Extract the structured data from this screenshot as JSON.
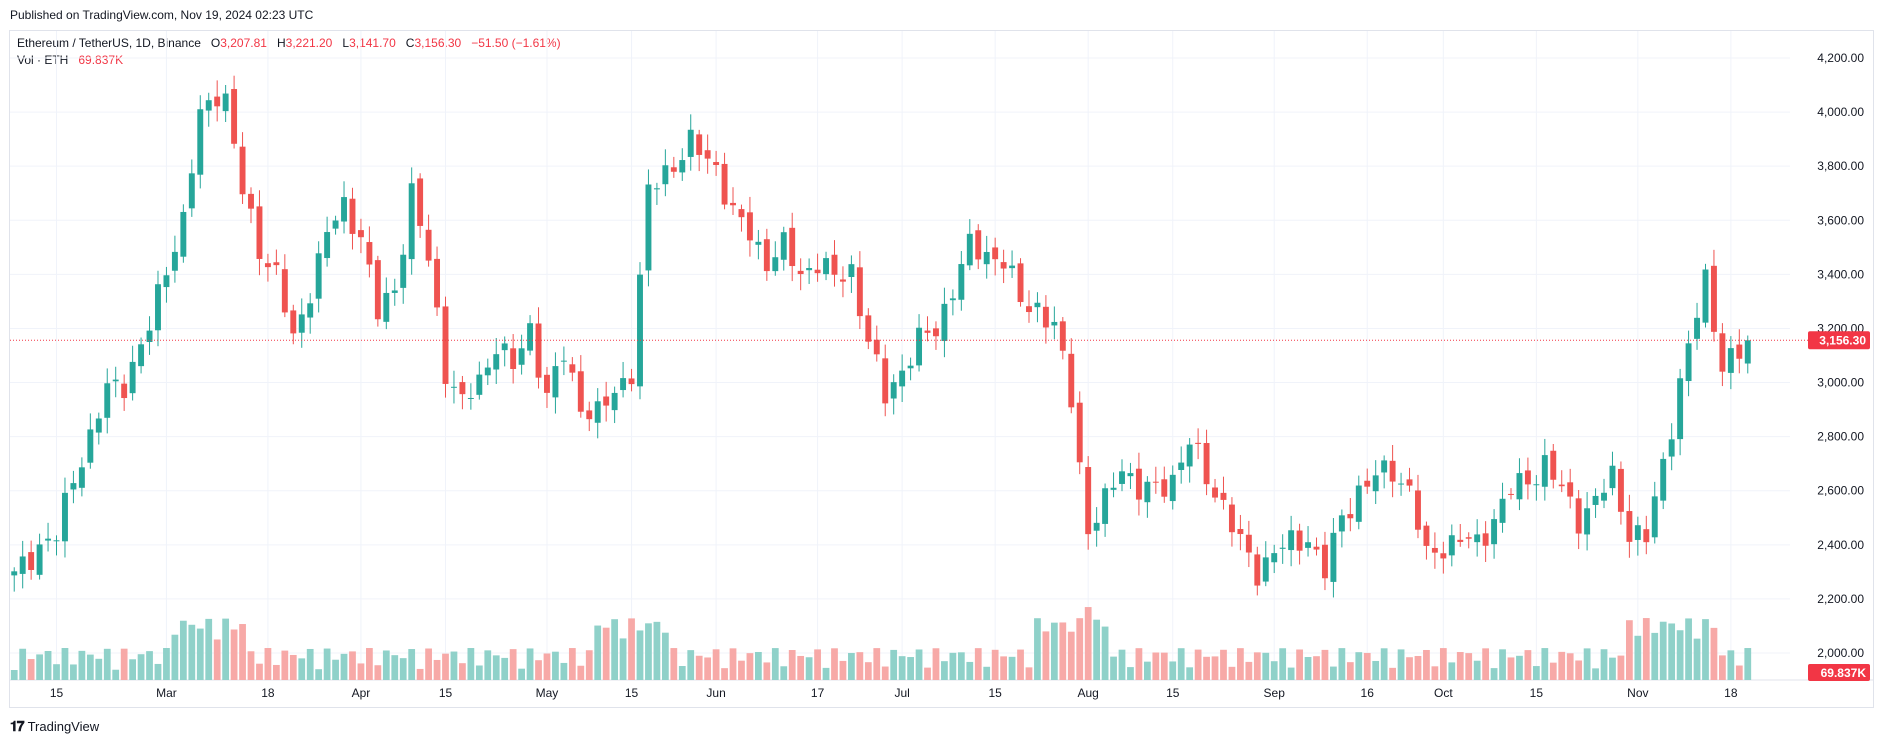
{
  "published": "Published on TradingView.com, Nov 19, 2024 02:23 UTC",
  "legend": {
    "symbol": "Ethereum / TetherUS, 1D, Binance",
    "o_label": "O",
    "o_value": "3,207.81",
    "h_label": "H",
    "h_value": "3,221.20",
    "l_label": "L",
    "l_value": "3,141.70",
    "c_label": "C",
    "c_value": "3,156.30",
    "change": "−51.50 (−1.61%)",
    "vol_label": "Vol · ETH",
    "vol_value": "69.837K"
  },
  "footer": {
    "brand": "TradingView",
    "logo": "tradingview-logo-icon"
  },
  "colors": {
    "up": "#26a69a",
    "down": "#ef5350",
    "up_volume": "#8fd1c9",
    "down_volume": "#f7a9a7",
    "last_price": "#f23645"
  },
  "chart_data": {
    "type": "candlestick",
    "title": "Ethereum / TetherUS, 1D, Binance",
    "ylim": [
      1900,
      4250
    ],
    "y_ticks": [
      "4,200.00",
      "4,000.00",
      "3,800.00",
      "3,600.00",
      "3,400.00",
      "3,200.00",
      "3,000.00",
      "2,800.00",
      "2,600.00",
      "2,400.00",
      "2,200.00",
      "2,000.00"
    ],
    "y_tick_values": [
      4200,
      4000,
      3800,
      3600,
      3400,
      3200,
      3000,
      2800,
      2600,
      2400,
      2200,
      2000
    ],
    "x_ticks": [
      "15",
      "Mar",
      "18",
      "Apr",
      "15",
      "May",
      "15",
      "Jun",
      "17",
      "Jul",
      "15",
      "Aug",
      "15",
      "Sep",
      "16",
      "Oct",
      "15",
      "Nov",
      "18"
    ],
    "x_tick_bars": [
      5,
      18,
      30,
      41,
      51,
      63,
      73,
      83,
      95,
      105,
      116,
      127,
      137,
      149,
      160,
      169,
      180,
      192,
      203
    ],
    "last_price": 3156.3,
    "last_price_label": "3,156.30",
    "last_volume_label": "69.837K",
    "waypoints": [
      [
        0,
        2280
      ],
      [
        3,
        2400
      ],
      [
        5,
        2430
      ],
      [
        7,
        2650
      ],
      [
        9,
        2800
      ],
      [
        11,
        2970
      ],
      [
        13,
        3000
      ],
      [
        16,
        3200
      ],
      [
        18,
        3430
      ],
      [
        20,
        3600
      ],
      [
        22,
        3980
      ],
      [
        24,
        4080
      ],
      [
        25,
        4050
      ],
      [
        27,
        3700
      ],
      [
        29,
        3500
      ],
      [
        31,
        3400
      ],
      [
        33,
        3150
      ],
      [
        35,
        3350
      ],
      [
        37,
        3550
      ],
      [
        39,
        3650
      ],
      [
        41,
        3550
      ],
      [
        43,
        3250
      ],
      [
        45,
        3350
      ],
      [
        47,
        3700
      ],
      [
        49,
        3450
      ],
      [
        51,
        3050
      ],
      [
        53,
        2920
      ],
      [
        55,
        3000
      ],
      [
        57,
        3150
      ],
      [
        59,
        3050
      ],
      [
        61,
        3200
      ],
      [
        63,
        2950
      ],
      [
        65,
        3100
      ],
      [
        67,
        2920
      ],
      [
        69,
        2880
      ],
      [
        71,
        2960
      ],
      [
        73,
        3050
      ],
      [
        75,
        3700
      ],
      [
        77,
        3780
      ],
      [
        80,
        3880
      ],
      [
        83,
        3800
      ],
      [
        85,
        3620
      ],
      [
        87,
        3550
      ],
      [
        89,
        3450
      ],
      [
        91,
        3500
      ],
      [
        93,
        3400
      ],
      [
        95,
        3450
      ],
      [
        97,
        3380
      ],
      [
        99,
        3420
      ],
      [
        101,
        3150
      ],
      [
        103,
        2950
      ],
      [
        105,
        3050
      ],
      [
        107,
        3150
      ],
      [
        109,
        3200
      ],
      [
        111,
        3350
      ],
      [
        113,
        3500
      ],
      [
        115,
        3480
      ],
      [
        117,
        3450
      ],
      [
        119,
        3300
      ],
      [
        121,
        3280
      ],
      [
        123,
        3200
      ],
      [
        125,
        2950
      ],
      [
        127,
        2450
      ],
      [
        129,
        2550
      ],
      [
        131,
        2700
      ],
      [
        133,
        2600
      ],
      [
        135,
        2600
      ],
      [
        137,
        2650
      ],
      [
        139,
        2780
      ],
      [
        141,
        2650
      ],
      [
        143,
        2550
      ],
      [
        145,
        2400
      ],
      [
        147,
        2300
      ],
      [
        149,
        2380
      ],
      [
        151,
        2400
      ],
      [
        153,
        2430
      ],
      [
        155,
        2300
      ],
      [
        157,
        2500
      ],
      [
        159,
        2600
      ],
      [
        161,
        2650
      ],
      [
        163,
        2680
      ],
      [
        165,
        2600
      ],
      [
        167,
        2350
      ],
      [
        169,
        2400
      ],
      [
        171,
        2420
      ],
      [
        173,
        2400
      ],
      [
        175,
        2500
      ],
      [
        177,
        2600
      ],
      [
        179,
        2640
      ],
      [
        181,
        2700
      ],
      [
        183,
        2600
      ],
      [
        185,
        2500
      ],
      [
        187,
        2560
      ],
      [
        189,
        2650
      ],
      [
        191,
        2450
      ],
      [
        193,
        2420
      ],
      [
        195,
        2700
      ],
      [
        197,
        3000
      ],
      [
        199,
        3250
      ],
      [
        200,
        3380
      ],
      [
        202,
        3070
      ],
      [
        204,
        3100
      ],
      [
        205,
        3150
      ]
    ],
    "volume_note": "Volume histogram per bar; green/red by candle direction"
  }
}
